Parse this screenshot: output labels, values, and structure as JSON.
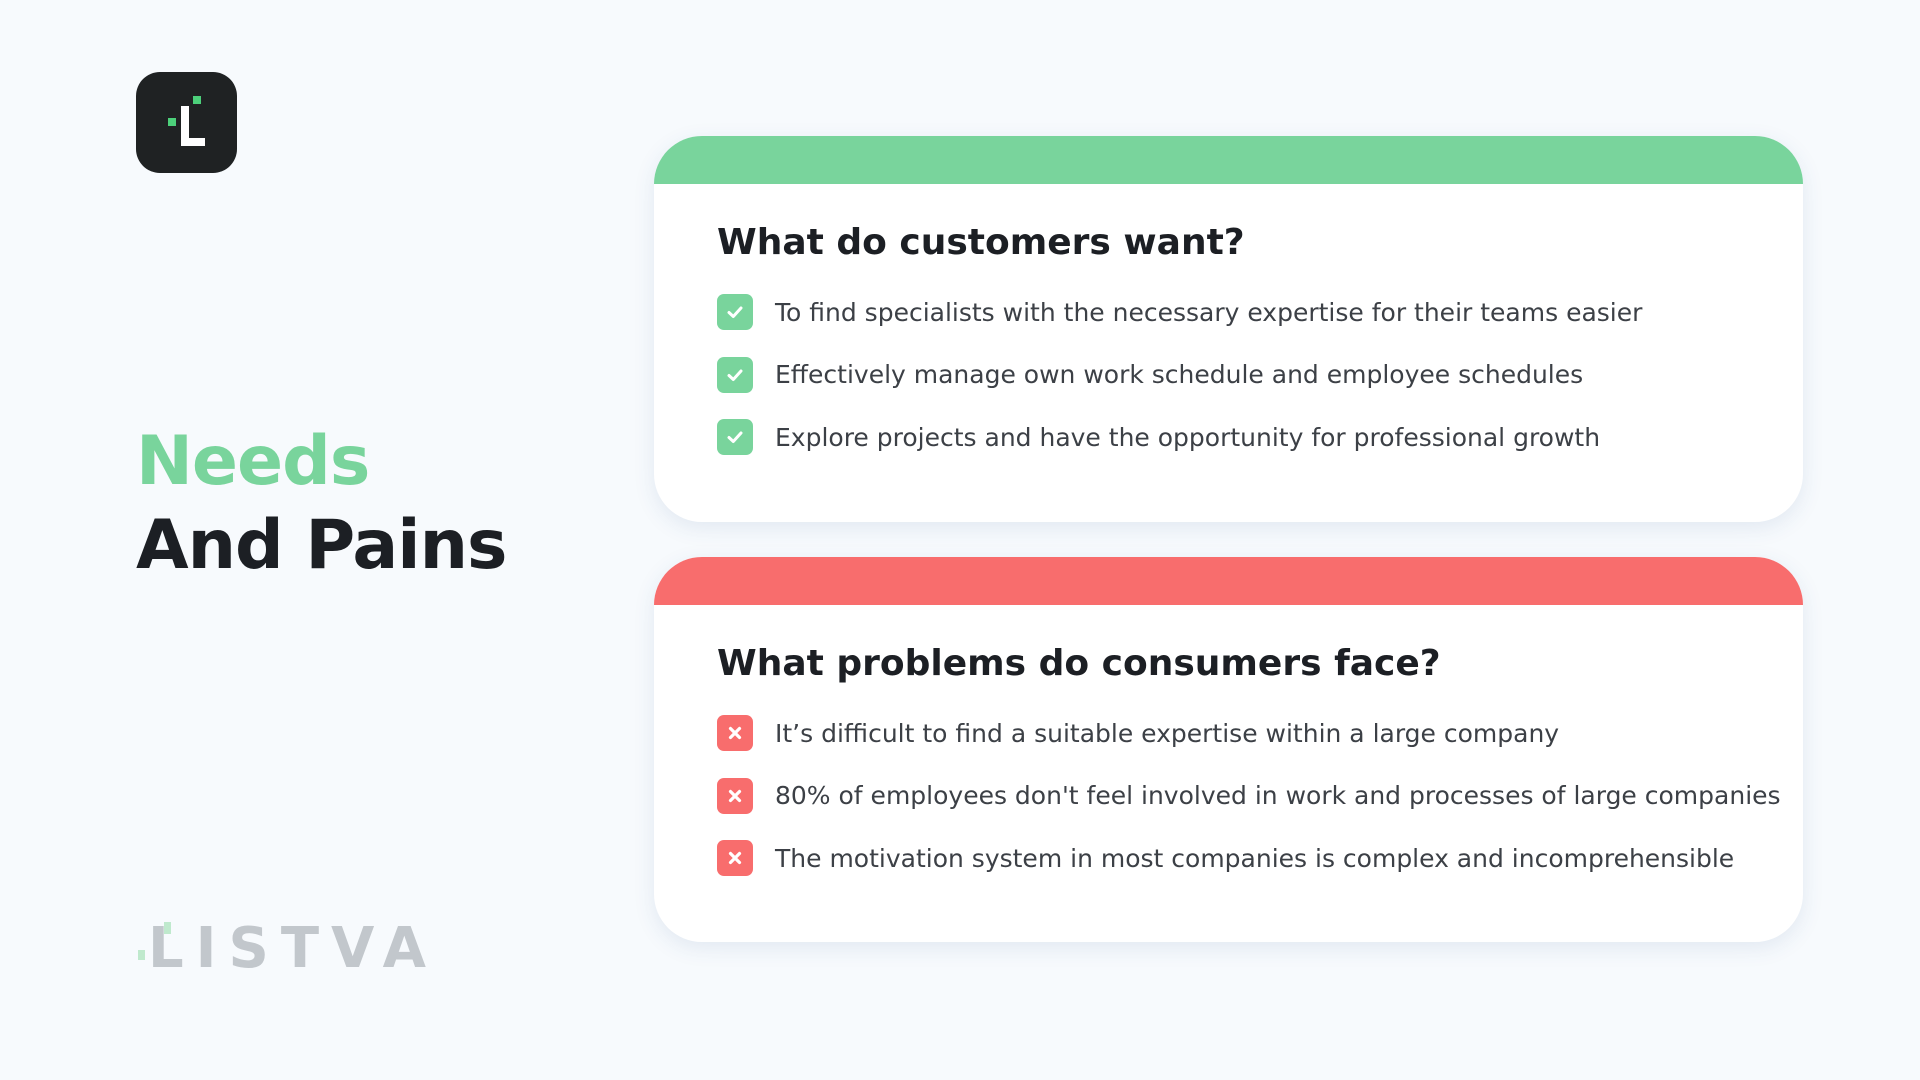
{
  "brand": {
    "name": "LISTVA",
    "accent_green": "#79d49c",
    "accent_red": "#f86d6d",
    "logo_icon": "listva-app-logo-icon"
  },
  "headline": {
    "line1": "Needs",
    "line2": "And Pains"
  },
  "wants_card": {
    "title": "What do customers want?",
    "icon": "check-icon",
    "items": [
      "To find specialists with the necessary expertise for their teams easier",
      "Effectively manage own work schedule and employee schedules",
      "Explore projects and have the opportunity for professional growth"
    ]
  },
  "pains_card": {
    "title": "What problems do consumers face?",
    "icon": "cross-icon",
    "items": [
      "It’s difficult to find a suitable expertise within a large company",
      "80% of employees don't feel involved in work and processes of large companies",
      "The motivation system in most companies is complex and incomprehensible"
    ]
  }
}
